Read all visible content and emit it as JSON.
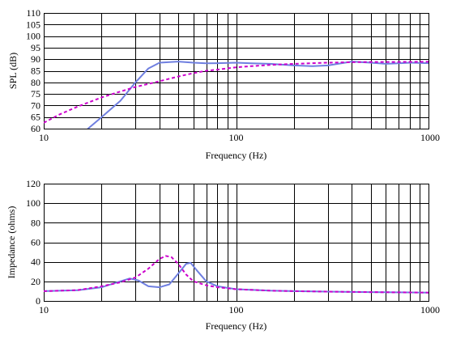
{
  "chart_data": [
    {
      "type": "line",
      "title": "",
      "xlabel": "Frequency (Hz)",
      "ylabel": "SPL (dB)",
      "x_scale": "log",
      "xlim": [
        10,
        1000
      ],
      "ylim": [
        60,
        110
      ],
      "x_tick_labels": [
        "10",
        "100",
        "1000"
      ],
      "y_ticks": [
        60,
        65,
        70,
        75,
        80,
        85,
        90,
        95,
        100,
        105,
        110
      ],
      "grid": true,
      "series": [
        {
          "style": "solid",
          "color": "#6f7fe0",
          "x": [
            17,
            20,
            25,
            30,
            35,
            40,
            50,
            60,
            70,
            80,
            100,
            120,
            150,
            200,
            250,
            300,
            400,
            500,
            600,
            700,
            800,
            1000
          ],
          "y": [
            60,
            65,
            72,
            80,
            86,
            88.5,
            89,
            88.5,
            88.2,
            88.3,
            88.5,
            88.2,
            88.0,
            87.3,
            87.0,
            87.3,
            89.0,
            88.5,
            88.0,
            88.2,
            88.5,
            88.3
          ]
        },
        {
          "style": "dashed",
          "color": "#cc00cc",
          "x": [
            10,
            12,
            15,
            20,
            25,
            30,
            40,
            50,
            60,
            70,
            80,
            100,
            120,
            150,
            200,
            300,
            400,
            500,
            700,
            1000
          ],
          "y": [
            62.5,
            66,
            69.5,
            73.5,
            76,
            78,
            80.5,
            82.5,
            84,
            85,
            85.5,
            86.5,
            87,
            87.5,
            88,
            88.5,
            88.7,
            88.8,
            88.8,
            88.9
          ]
        }
      ]
    },
    {
      "type": "line",
      "title": "",
      "xlabel": "Frequency (Hz)",
      "ylabel": "Impedance (ohms)",
      "x_scale": "log",
      "xlim": [
        10,
        1000
      ],
      "ylim": [
        0,
        120
      ],
      "x_tick_labels": [
        "10",
        "100",
        "1000"
      ],
      "y_ticks": [
        0,
        20,
        40,
        60,
        80,
        100,
        120
      ],
      "grid": true,
      "series": [
        {
          "style": "solid",
          "color": "#6f7fe0",
          "x": [
            10,
            15,
            20,
            25,
            28,
            31,
            35,
            40,
            45,
            50,
            55,
            58,
            62,
            70,
            80,
            100,
            150,
            200,
            300,
            500,
            1000
          ],
          "y": [
            10,
            11,
            14,
            20,
            23,
            21,
            15,
            14,
            17,
            28,
            38,
            39,
            32,
            20,
            15,
            12,
            10.5,
            10,
            9.5,
            9,
            8.5
          ]
        },
        {
          "style": "dashed",
          "color": "#cc00cc",
          "x": [
            10,
            15,
            20,
            25,
            30,
            35,
            40,
            43,
            46,
            50,
            55,
            60,
            70,
            80,
            100,
            150,
            200,
            300,
            500,
            1000
          ],
          "y": [
            10,
            11,
            15,
            19,
            24,
            33,
            43,
            46,
            45,
            38,
            27,
            20,
            16,
            14,
            12,
            10.5,
            10,
            9.5,
            9,
            8.5
          ]
        }
      ]
    }
  ]
}
